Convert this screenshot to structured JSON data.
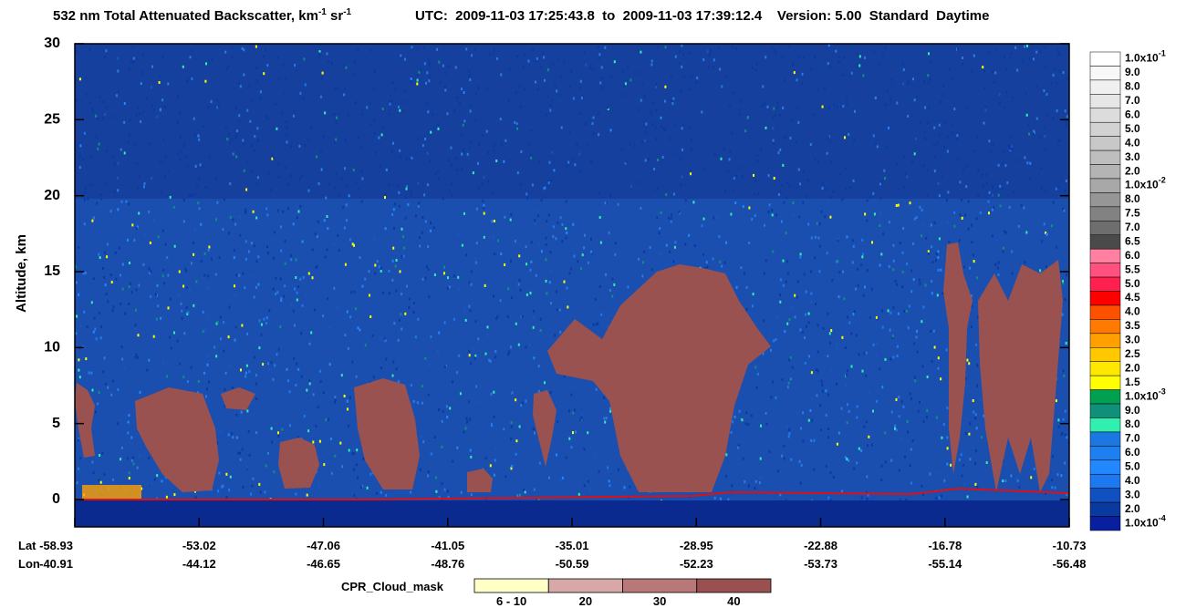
{
  "chart_data": {
    "type": "curtain",
    "title_parts": [
      "532 nm Total Attenuated Backscatter, km",
      "-1",
      " sr",
      "-1"
    ],
    "title_info": "UTC:  2009-11-03 17:25:43.8  to  2009-11-03 17:39:12.4    Version: 5.00  Standard  Daytime",
    "y_label": "Altitude, km",
    "ylim": [
      -1.8,
      30
    ],
    "yticks": [
      0,
      5,
      10,
      15,
      20,
      25,
      30
    ],
    "x_row_labels": [
      "Lat",
      "Lon"
    ],
    "lat": [
      "-58.93",
      "-53.02",
      "-47.06",
      "-41.05",
      "-35.01",
      "-28.95",
      "-22.88",
      "-16.78",
      "-10.73"
    ],
    "lon": [
      "-40.91",
      "-44.12",
      "-46.65",
      "-48.76",
      "-50.59",
      "-52.23",
      "-53.73",
      "-55.14",
      "-56.48"
    ],
    "colorbar": [
      {
        "label": "1.0x10",
        "exponent": "-1",
        "color": "#ffffff"
      },
      {
        "label": "9.0",
        "color": "#f8f8f8"
      },
      {
        "label": "8.0",
        "color": "#f0f0f0"
      },
      {
        "label": "7.0",
        "color": "#e6e6e6"
      },
      {
        "label": "6.0",
        "color": "#dcdcdc"
      },
      {
        "label": "5.0",
        "color": "#d2d2d2"
      },
      {
        "label": "4.0",
        "color": "#c8c8c8"
      },
      {
        "label": "3.0",
        "color": "#bebebe"
      },
      {
        "label": "2.0",
        "color": "#b4b4b4"
      },
      {
        "label": "1.0x10",
        "exponent": "-2",
        "color": "#a8a8a8"
      },
      {
        "label": "8.0",
        "color": "#969696"
      },
      {
        "label": "7.5",
        "color": "#828282"
      },
      {
        "label": "7.0",
        "color": "#6e6e6e"
      },
      {
        "label": "6.5",
        "color": "#4a4a4a"
      },
      {
        "label": "6.0",
        "color": "#ff80a0"
      },
      {
        "label": "5.5",
        "color": "#ff5080"
      },
      {
        "label": "5.0",
        "color": "#ff2050"
      },
      {
        "label": "4.5",
        "color": "#ff0000"
      },
      {
        "label": "4.0",
        "color": "#ff5000"
      },
      {
        "label": "3.5",
        "color": "#ff7a00"
      },
      {
        "label": "3.0",
        "color": "#ffa000"
      },
      {
        "label": "2.5",
        "color": "#ffc800"
      },
      {
        "label": "2.0",
        "color": "#ffe800"
      },
      {
        "label": "1.5",
        "color": "#ffff00"
      },
      {
        "label": "1.0x10",
        "exponent": "-3",
        "color": "#00a050"
      },
      {
        "label": "9.0",
        "color": "#10907a"
      },
      {
        "label": "8.0",
        "color": "#30f0b0"
      },
      {
        "label": "7.0",
        "color": "#1a78e0"
      },
      {
        "label": "6.0",
        "color": "#1e80f0"
      },
      {
        "label": "5.0",
        "color": "#2288ff"
      },
      {
        "label": "4.0",
        "color": "#1e78f0"
      },
      {
        "label": "3.0",
        "color": "#1050c0"
      },
      {
        "label": "2.0",
        "color": "#0a3aa0"
      },
      {
        "label": "1.0x10",
        "exponent": "-4",
        "color": "#0820a0"
      }
    ],
    "cloud_mask": {
      "title": "CPR_Cloud_mask",
      "labels": [
        "6 - 10",
        "20",
        "30",
        "40"
      ],
      "colors": [
        "#ffffc8",
        "#d8a8a8",
        "#b87878",
        "#985050"
      ]
    }
  }
}
